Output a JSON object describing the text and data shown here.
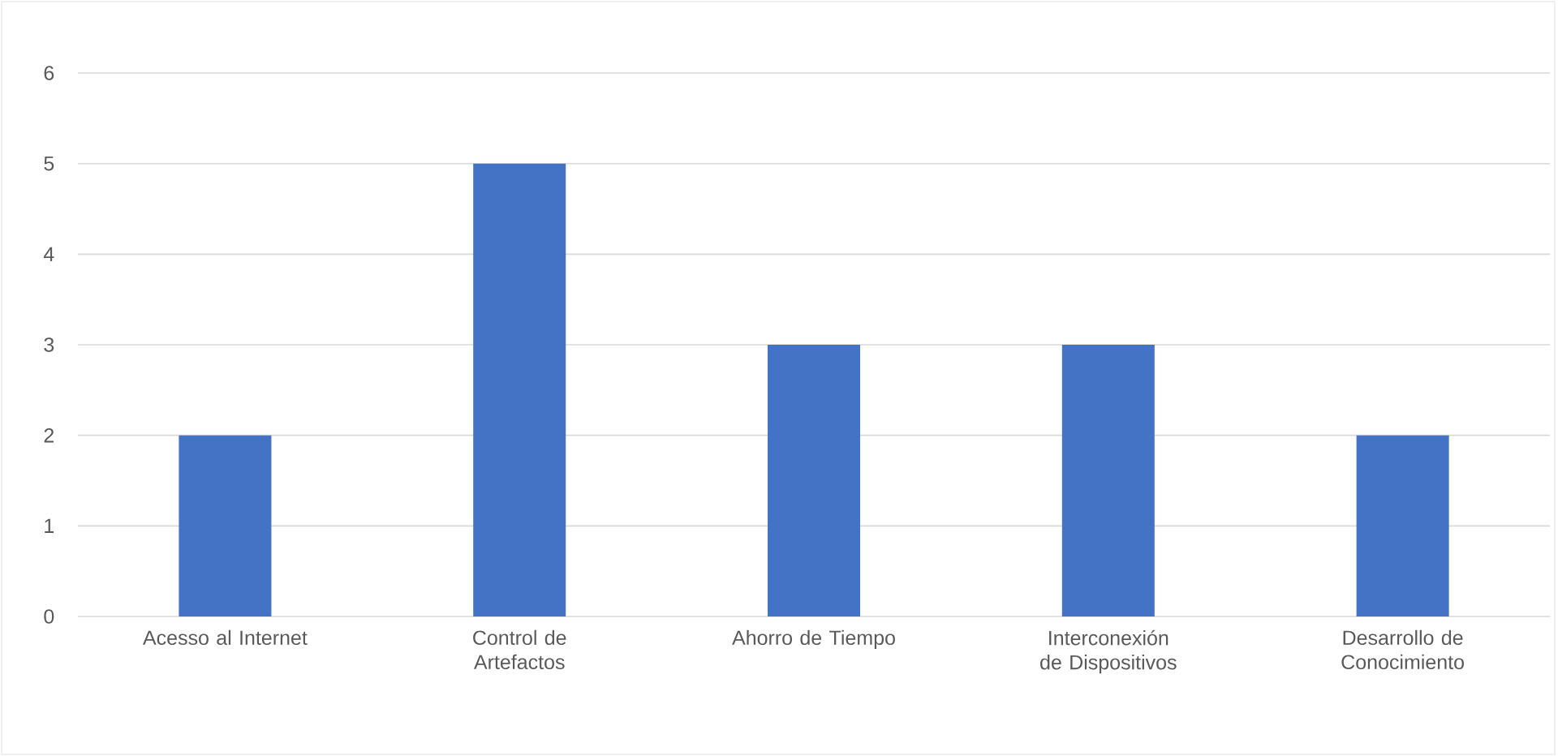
{
  "chart_data": {
    "type": "bar",
    "categories": [
      "Acesso al Internet",
      "Control de Artefactos",
      "Ahorro de Tiempo",
      "Interconexión  de Dispositivos",
      "Desarrollo de Conocimiento"
    ],
    "values": [
      2,
      5,
      3,
      3,
      2
    ],
    "color": "#4472c4",
    "ylim": [
      0,
      6
    ],
    "yticks": [
      0,
      1,
      2,
      3,
      4,
      5,
      6
    ],
    "grid": "y"
  }
}
